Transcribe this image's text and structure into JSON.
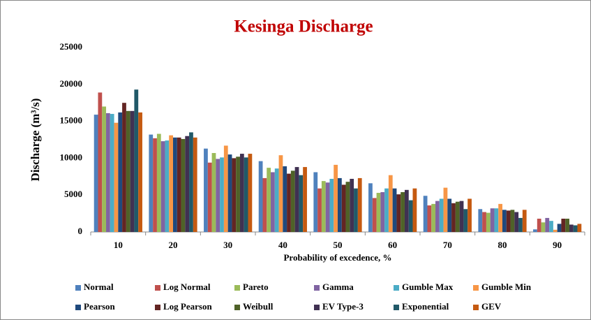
{
  "chart_data": {
    "type": "bar",
    "title": "Kesinga Discharge",
    "x_label": "Probability of excedence, %",
    "y_label": "Discharge (m³/s)",
    "categories": [
      "10",
      "20",
      "30",
      "40",
      "50",
      "60",
      "70",
      "80",
      "90"
    ],
    "series": [
      {
        "name": "Normal",
        "color": "#4f81bd",
        "values": [
          15900,
          13200,
          11300,
          9600,
          8100,
          6600,
          4900,
          3100,
          350
        ]
      },
      {
        "name": "Log Normal",
        "color": "#c0504d",
        "values": [
          18900,
          12700,
          9400,
          7300,
          5900,
          4600,
          3600,
          2700,
          1800
        ]
      },
      {
        "name": "Pareto",
        "color": "#9bbb59",
        "values": [
          17000,
          13300,
          10700,
          8700,
          6900,
          5300,
          3800,
          2600,
          1300
        ]
      },
      {
        "name": "Gamma",
        "color": "#8064a2",
        "values": [
          16100,
          12300,
          9900,
          8100,
          6700,
          5400,
          4200,
          3200,
          1900
        ]
      },
      {
        "name": "Gumble Max",
        "color": "#4bacc6",
        "values": [
          16000,
          12400,
          10100,
          8600,
          7200,
          5900,
          4500,
          3200,
          1500
        ]
      },
      {
        "name": "Gumble Min",
        "color": "#f79646",
        "values": [
          14800,
          13100,
          11700,
          10400,
          9100,
          7700,
          6000,
          3800,
          300
        ]
      },
      {
        "name": "Pearson",
        "color": "#1f497d",
        "values": [
          16200,
          12800,
          10500,
          8900,
          7300,
          5900,
          4500,
          3000,
          1100
        ]
      },
      {
        "name": "Log Pearson",
        "color": "#632523",
        "values": [
          17500,
          12800,
          10000,
          7900,
          6400,
          5100,
          3900,
          2900,
          1800
        ]
      },
      {
        "name": "Weibull",
        "color": "#4f6228",
        "values": [
          16400,
          12600,
          10200,
          8300,
          6800,
          5400,
          4100,
          3000,
          1800
        ]
      },
      {
        "name": "EV Type-3",
        "color": "#403152",
        "values": [
          16400,
          13000,
          10600,
          8800,
          7200,
          5700,
          4200,
          2700,
          1000
        ]
      },
      {
        "name": "Exponential",
        "color": "#215968",
        "values": [
          19300,
          13500,
          10100,
          7700,
          5900,
          4300,
          3100,
          1900,
          900
        ]
      },
      {
        "name": "GEV",
        "color": "#c55a11",
        "values": [
          16200,
          12800,
          10600,
          8800,
          7300,
          5900,
          4500,
          3000,
          1100
        ]
      }
    ],
    "ylim": [
      0,
      25000
    ],
    "yticks": [
      0,
      5000,
      10000,
      15000,
      20000,
      25000
    ],
    "grid": false
  }
}
